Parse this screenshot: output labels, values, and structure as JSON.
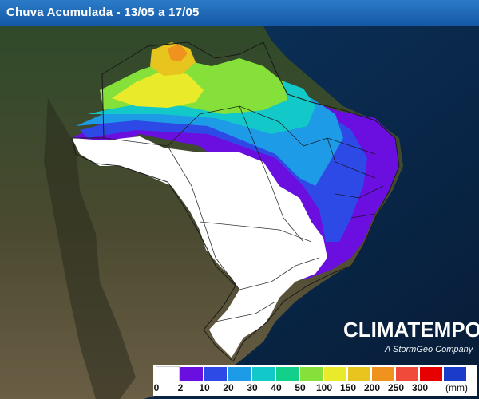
{
  "title": "Chuva Acumulada - 13/05 a 17/05",
  "brand": {
    "name": "CLIMATEMPO",
    "tagline": "A StormGeo Company"
  },
  "legend": {
    "unit": "(mm)",
    "bins": [
      {
        "label": "0",
        "color": "#ffffff"
      },
      {
        "label": "2",
        "color": "#6a0fe0"
      },
      {
        "label": "10",
        "color": "#2e4ae6"
      },
      {
        "label": "20",
        "color": "#1e9be6"
      },
      {
        "label": "30",
        "color": "#12c8c8"
      },
      {
        "label": "40",
        "color": "#12d08a"
      },
      {
        "label": "50",
        "color": "#86e03a"
      },
      {
        "label": "100",
        "color": "#e8ea2a"
      },
      {
        "label": "150",
        "color": "#e8c41e"
      },
      {
        "label": "200",
        "color": "#f0921e"
      },
      {
        "label": "250",
        "color": "#f04a3a"
      },
      {
        "label": "300",
        "color": "#e60000"
      },
      {
        "label": "",
        "color": "#1a3cc8"
      }
    ]
  },
  "colors": {
    "land": "#3d4a2c",
    "ocean": "#0b2c52",
    "dry": "#ffffff"
  }
}
